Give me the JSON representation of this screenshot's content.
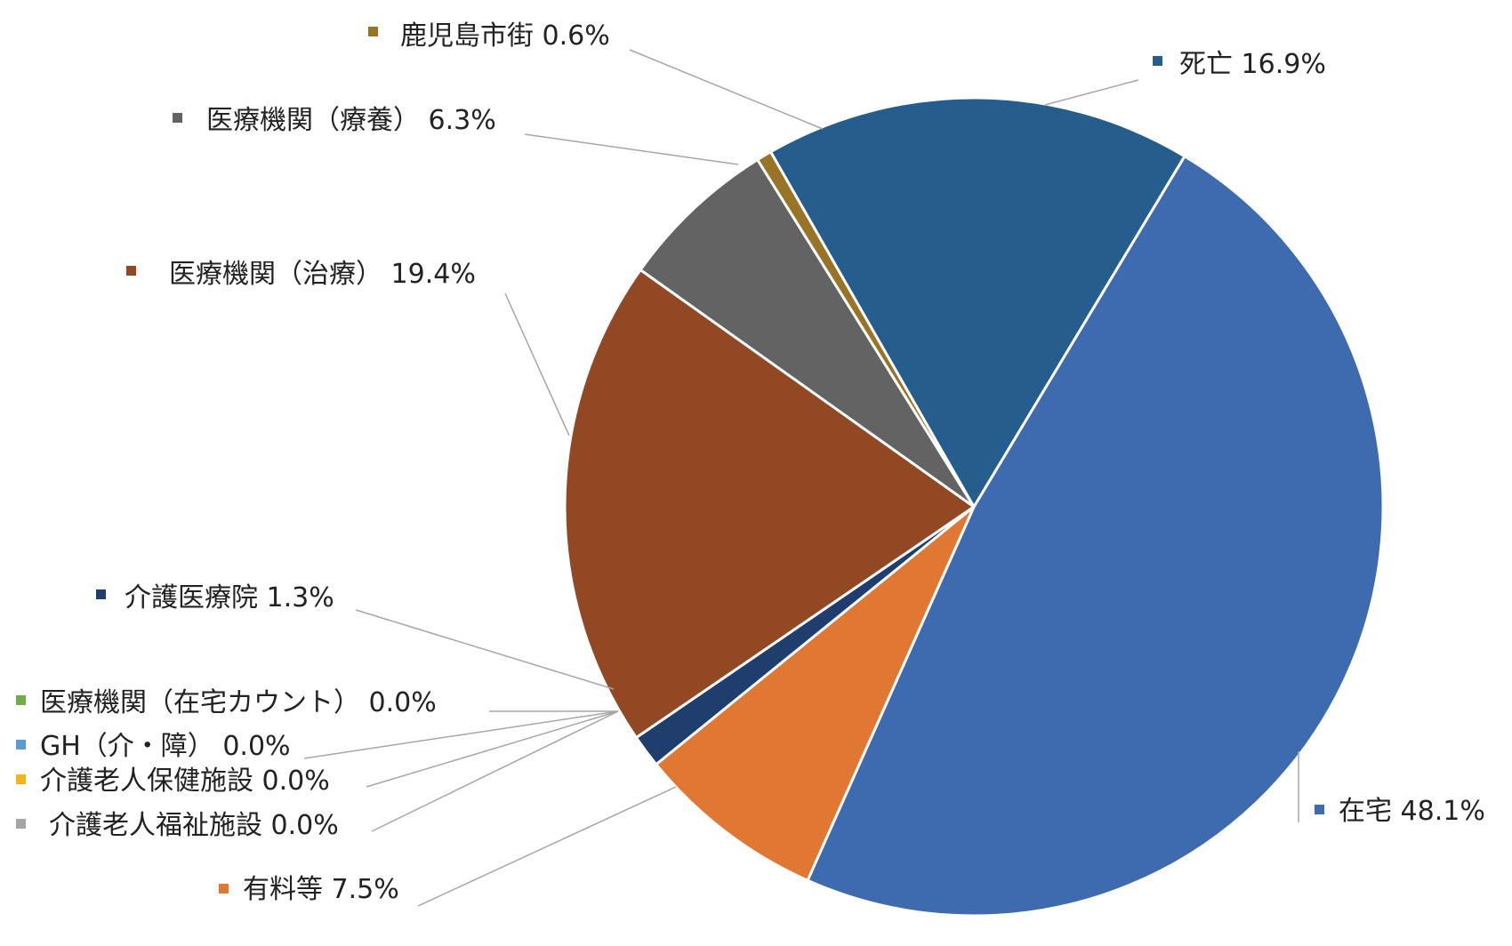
{
  "chart_data": {
    "type": "pie",
    "title": "",
    "legend": "none",
    "slices": [
      {
        "label": "在宅",
        "value": 48.1,
        "display": "在宅 48.1%",
        "color": "#3E6BB0"
      },
      {
        "label": "有料等",
        "value": 7.5,
        "display": "有料等 7.5%",
        "color": "#E07733"
      },
      {
        "label": "介護老人福祉施設",
        "value": 0.0,
        "display": "介護老人福祉施設 0.0%",
        "color": "#A5A5A5"
      },
      {
        "label": "介護老人保健施設",
        "value": 0.0,
        "display": "介護老人保健施設 0.0%",
        "color": "#F2B417"
      },
      {
        "label": "GH（介・障）",
        "value": 0.0,
        "display": "GH（介・障） 0.0%",
        "color": "#5B9BD5"
      },
      {
        "label": "医療機関（在宅カウント）",
        "value": 0.0,
        "display": "医療機関（在宅カウント） 0.0%",
        "color": "#70AD47"
      },
      {
        "label": "介護医療院",
        "value": 1.3,
        "display": "介護医療院 1.3%",
        "color": "#1F3E6E"
      },
      {
        "label": "医療機関（治療）",
        "value": 19.4,
        "display": "医療機関（治療） 19.4%",
        "color": "#934824"
      },
      {
        "label": "医療機関（療養）",
        "value": 6.3,
        "display": "医療機関（療養） 6.3%",
        "color": "#636363"
      },
      {
        "label": "鹿児島市街",
        "value": 0.6,
        "display": "鹿児島市街 0.6%",
        "color": "#977426"
      },
      {
        "label": "死亡",
        "value": 16.9,
        "display": "死亡 16.9%",
        "color": "#255D8C"
      }
    ]
  }
}
